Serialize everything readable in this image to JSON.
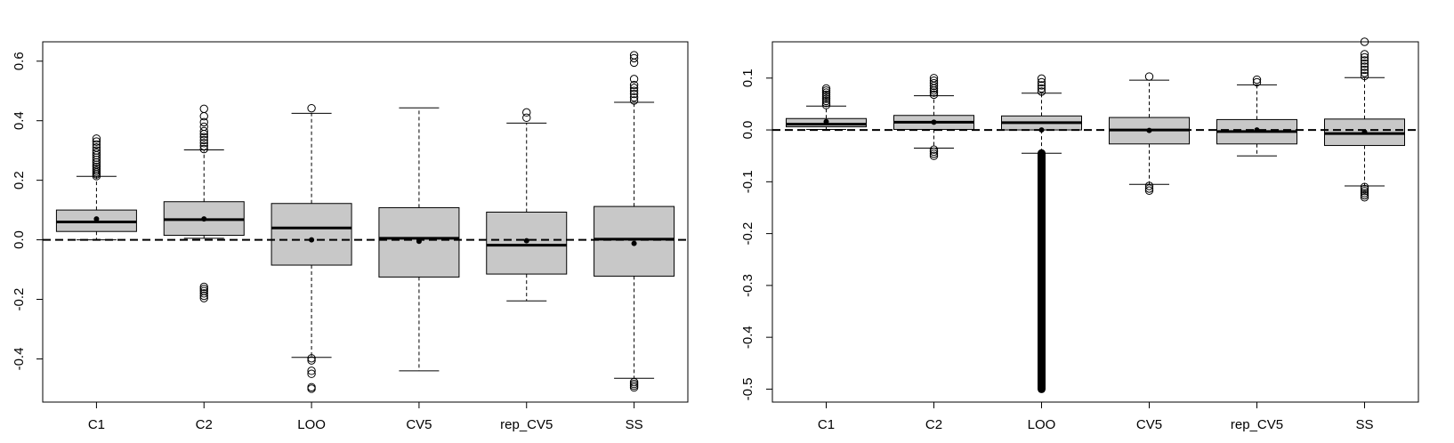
{
  "chart_data": [
    {
      "type": "boxplot",
      "title": "",
      "xlabel": "",
      "ylabel": "",
      "ylim": [
        -0.545,
        0.665
      ],
      "yticks": [
        -0.4,
        -0.2,
        0.0,
        0.2,
        0.4,
        0.6
      ],
      "ytick_labels": [
        "-0.4",
        "-0.2",
        "0.0",
        "0.2",
        "0.4",
        "0.6"
      ],
      "reference_line": 0,
      "categories": [
        "C1",
        "C2",
        "LOO",
        "CV5",
        "rep_CV5",
        "SS"
      ],
      "boxes": [
        {
          "category": "C1",
          "whisker_low": 0.0,
          "q1": 0.028,
          "median": 0.06,
          "q3": 0.1,
          "whisker_high": 0.213,
          "mean": 0.07,
          "outliers": [
            0.214,
            0.22,
            0.226,
            0.232,
            0.238,
            0.245,
            0.252,
            0.26,
            0.268,
            0.276,
            0.284,
            0.292,
            0.3,
            0.31,
            0.32,
            0.33,
            0.34
          ]
        },
        {
          "category": "C2",
          "whisker_low": 0.005,
          "q1": 0.015,
          "median": 0.068,
          "q3": 0.128,
          "whisker_high": 0.302,
          "mean": 0.07,
          "outliers": [
            -0.158,
            -0.165,
            -0.172,
            -0.18,
            -0.188,
            -0.196,
            0.305,
            0.315,
            0.325,
            0.335,
            0.345,
            0.355,
            0.365,
            0.38,
            0.395,
            0.415,
            0.44
          ]
        },
        {
          "category": "LOO",
          "whisker_low": -0.395,
          "q1": -0.085,
          "median": 0.04,
          "q3": 0.122,
          "whisker_high": 0.425,
          "mean": 0.0,
          "outliers": [
            -0.398,
            -0.405,
            -0.44,
            -0.45,
            -0.495,
            -0.5,
            0.442
          ]
        },
        {
          "category": "CV5",
          "whisker_low": -0.44,
          "q1": -0.125,
          "median": 0.005,
          "q3": 0.108,
          "whisker_high": 0.443,
          "mean": -0.005,
          "outliers": []
        },
        {
          "category": "rep_CV5",
          "whisker_low": -0.205,
          "q1": -0.115,
          "median": -0.018,
          "q3": 0.093,
          "whisker_high": 0.392,
          "mean": -0.003,
          "outliers": [
            0.41,
            0.428
          ]
        },
        {
          "category": "SS",
          "whisker_low": -0.465,
          "q1": -0.122,
          "median": 0.002,
          "q3": 0.112,
          "whisker_high": 0.462,
          "mean": -0.012,
          "outliers": [
            -0.478,
            -0.484,
            -0.49,
            -0.496,
            0.468,
            0.478,
            0.49,
            0.5,
            0.51,
            0.52,
            0.54,
            0.595,
            0.61,
            0.62
          ]
        }
      ]
    },
    {
      "type": "boxplot",
      "title": "",
      "xlabel": "",
      "ylabel": "",
      "ylim": [
        -0.525,
        0.17
      ],
      "yticks": [
        -0.5,
        -0.4,
        -0.3,
        -0.2,
        -0.1,
        0.0,
        0.1
      ],
      "ytick_labels": [
        "-0.5",
        "-0.4",
        "-0.3",
        "-0.2",
        "-0.1",
        "0.0",
        "0.1"
      ],
      "reference_line": 0,
      "categories": [
        "C1",
        "C2",
        "LOO",
        "CV5",
        "rep_CV5",
        "SS"
      ],
      "boxes": [
        {
          "category": "C1",
          "whisker_low": 0.001,
          "q1": 0.006,
          "median": 0.011,
          "q3": 0.022,
          "whisker_high": 0.046,
          "mean": 0.016,
          "outliers": [
            0.048,
            0.052,
            0.056,
            0.06,
            0.064,
            0.068,
            0.072,
            0.076,
            0.08
          ]
        },
        {
          "category": "C2",
          "whisker_low": -0.035,
          "q1": 0.001,
          "median": 0.015,
          "q3": 0.028,
          "whisker_high": 0.066,
          "mean": 0.015,
          "outliers": [
            -0.038,
            -0.042,
            -0.046,
            -0.05,
            0.068,
            0.072,
            0.076,
            0.08,
            0.085,
            0.09,
            0.095,
            0.1
          ]
        },
        {
          "category": "LOO",
          "whisker_low": -0.045,
          "q1": 0.0,
          "median": 0.014,
          "q3": 0.027,
          "whisker_high": 0.071,
          "mean": 0.0,
          "outliers": [
            0.074,
            0.08,
            0.086,
            0.092,
            0.099
          ],
          "outlier_column": [
            -0.045,
            -0.5
          ]
        },
        {
          "category": "CV5",
          "whisker_low": -0.105,
          "q1": -0.027,
          "median": 0.0,
          "q3": 0.024,
          "whisker_high": 0.096,
          "mean": -0.001,
          "outliers": [
            -0.108,
            -0.113,
            -0.117,
            0.103
          ]
        },
        {
          "category": "rep_CV5",
          "whisker_low": -0.05,
          "q1": -0.027,
          "median": -0.003,
          "q3": 0.02,
          "whisker_high": 0.087,
          "mean": 0.0,
          "outliers": [
            0.092,
            0.097
          ]
        },
        {
          "category": "SS",
          "whisker_low": -0.108,
          "q1": -0.03,
          "median": -0.007,
          "q3": 0.021,
          "whisker_high": 0.101,
          "mean": -0.004,
          "outliers": [
            -0.11,
            -0.114,
            -0.118,
            -0.122,
            -0.126,
            -0.13,
            0.104,
            0.11,
            0.116,
            0.122,
            0.128,
            0.134,
            0.14,
            0.146,
            0.17
          ]
        }
      ]
    }
  ]
}
